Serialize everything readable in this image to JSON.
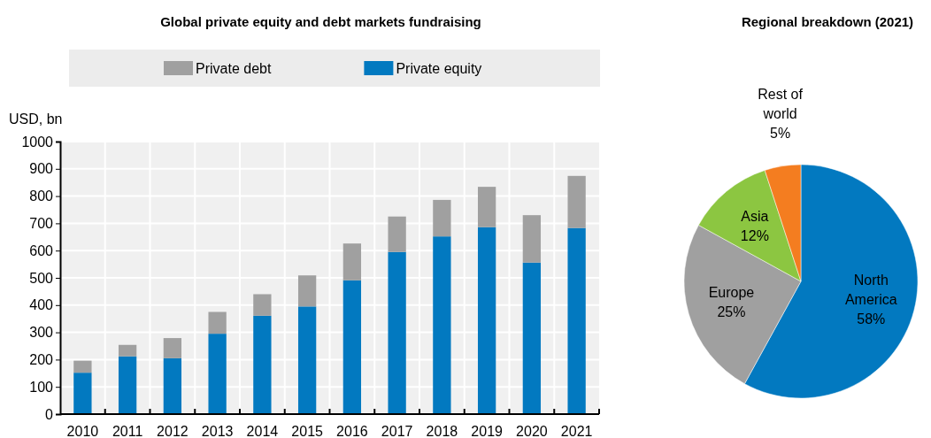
{
  "chart_data": [
    {
      "type": "bar",
      "title": "Global private equity and debt markets fundraising",
      "ylabel": "USD, bn",
      "stacked": true,
      "categories": [
        "2010",
        "2011",
        "2012",
        "2013",
        "2014",
        "2015",
        "2016",
        "2017",
        "2018",
        "2019",
        "2020",
        "2021"
      ],
      "series": [
        {
          "name": "Private equity",
          "color": "#0279c0",
          "values": [
            152,
            212,
            205,
            295,
            361,
            395,
            491,
            595,
            652,
            686,
            556,
            683
          ]
        },
        {
          "name": "Private debt",
          "color": "#a0a0a0",
          "values": [
            44,
            42,
            74,
            80,
            79,
            114,
            135,
            130,
            134,
            148,
            174,
            191
          ]
        }
      ],
      "ylim": [
        0,
        1000
      ],
      "yticks": [
        0,
        100,
        200,
        300,
        400,
        500,
        600,
        700,
        800,
        900,
        1000
      ],
      "grid": true,
      "legend": "top"
    },
    {
      "type": "pie",
      "title": "Regional breakdown (2021)",
      "categories": [
        "North America",
        "Europe",
        "Asia",
        "Rest of world"
      ],
      "values": [
        58,
        25,
        12,
        5
      ],
      "colors": [
        "#0279c0",
        "#a0a0a0",
        "#8cc641",
        "#f47d20"
      ],
      "value_labels": [
        "58%",
        "25%",
        "12%",
        "5%"
      ]
    }
  ]
}
